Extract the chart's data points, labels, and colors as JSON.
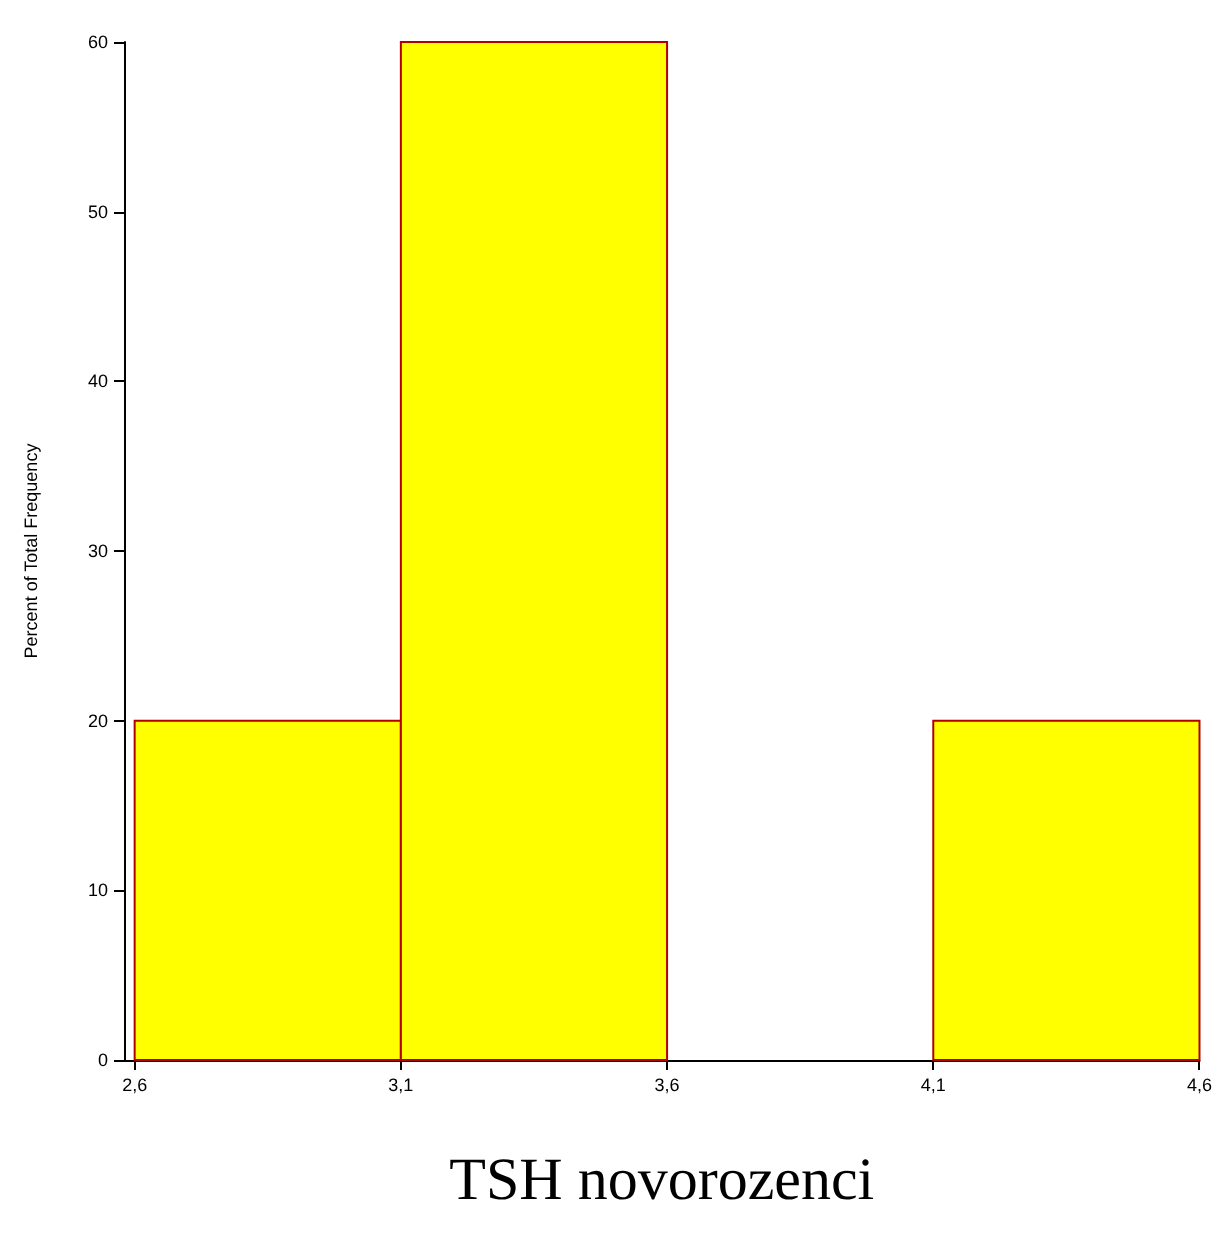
{
  "chart_data": {
    "type": "histogram",
    "xlabel": "TSH novorozenci",
    "ylabel": "Percent of Total Frequency",
    "bins": [
      2.6,
      3.1,
      3.6,
      4.1,
      4.6
    ],
    "values": [
      20,
      60,
      0,
      20
    ],
    "color": "#ffff00",
    "xlim": [
      2.58,
      4.6
    ],
    "xticks": [
      {
        "value": 2.6,
        "label": "2,6"
      },
      {
        "value": 3.1,
        "label": "3,1"
      },
      {
        "value": 3.6,
        "label": "3,6"
      },
      {
        "value": 4.1,
        "label": "4,1"
      },
      {
        "value": 4.6,
        "label": "4,6"
      }
    ],
    "ylim": [
      0,
      60
    ],
    "yticks": [
      0,
      10,
      20,
      30,
      40,
      50,
      60
    ],
    "grid": false
  }
}
